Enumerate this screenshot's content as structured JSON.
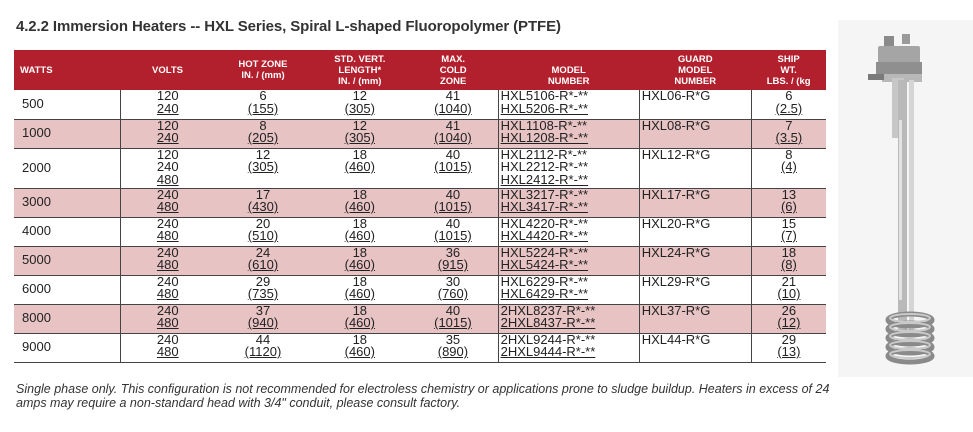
{
  "title": "4.2.2 Immersion Heaters -- HXL Series, Spiral L-shaped Fluoropolymer (PTFE)",
  "headers": {
    "watts": "WATTS",
    "volts": "VOLTS",
    "hot_zone": [
      "HOT ZONE",
      "IN. / (mm)"
    ],
    "vert_length": [
      "STD. VERT.",
      "LENGTH*",
      "IN. / (mm)"
    ],
    "cold_zone": [
      "MAX.",
      "COLD",
      "ZONE"
    ],
    "model": [
      "MODEL",
      "NUMBER"
    ],
    "guard": [
      "GUARD",
      "MODEL",
      "NUMBER"
    ],
    "ship": [
      "SHIP",
      "WT.",
      "LBS. / (kg"
    ]
  },
  "rows": [
    {
      "watts": "500",
      "volts": [
        "120",
        "240"
      ],
      "hot": [
        "6",
        "(155)"
      ],
      "vert": [
        "12",
        "(305)"
      ],
      "cold": [
        "41",
        "(1040)"
      ],
      "model": [
        "HXL5106-R*-**",
        "HXL5206-R*-**"
      ],
      "guard": "HXL06-R*G",
      "ship": [
        "6",
        "(2.5)"
      ]
    },
    {
      "watts": "1000",
      "volts": [
        "120",
        "240"
      ],
      "hot": [
        "8",
        "(205)"
      ],
      "vert": [
        "12",
        "(305)"
      ],
      "cold": [
        "41",
        "(1040)"
      ],
      "model": [
        "HXL1108-R*-**",
        "HXL1208-R*-**"
      ],
      "guard": "HXL08-R*G",
      "ship": [
        "7",
        "(3.5)"
      ]
    },
    {
      "watts": "2000",
      "volts": [
        "120",
        "240",
        "480"
      ],
      "hot": [
        "12",
        "(305)"
      ],
      "vert": [
        "18",
        "(460)"
      ],
      "cold": [
        "40",
        "(1015)"
      ],
      "model": [
        "HXL2112-R*-**",
        "HXL2212-R*-**",
        "HXL2412-R*-**"
      ],
      "guard": "HXL12-R*G",
      "ship": [
        "8",
        "(4)"
      ]
    },
    {
      "watts": "3000",
      "volts": [
        "240",
        "480"
      ],
      "hot": [
        "17",
        "(430)"
      ],
      "vert": [
        "18",
        "(460)"
      ],
      "cold": [
        "40",
        "(1015)"
      ],
      "model": [
        "HXL3217-R*-**",
        "HXL3417-R*-**"
      ],
      "guard": "HXL17-R*G",
      "ship": [
        "13",
        "(6)"
      ]
    },
    {
      "watts": "4000",
      "volts": [
        "240",
        "480"
      ],
      "hot": [
        "20",
        "(510)"
      ],
      "vert": [
        "18",
        "(460)"
      ],
      "cold": [
        "40",
        "(1015)"
      ],
      "model": [
        "HXL4220-R*-**",
        "HXL4420-R*-**"
      ],
      "guard": "HXL20-R*G",
      "ship": [
        "15",
        "(7)"
      ]
    },
    {
      "watts": "5000",
      "volts": [
        "240",
        "480"
      ],
      "hot": [
        "24",
        "(610)"
      ],
      "vert": [
        "18",
        "(460)"
      ],
      "cold": [
        "36",
        "(915)"
      ],
      "model": [
        "HXL5224-R*-**",
        "HXL5424-R*-**"
      ],
      "guard": "HXL24-R*G",
      "ship": [
        "18",
        "(8)"
      ]
    },
    {
      "watts": "6000",
      "volts": [
        "240",
        "480"
      ],
      "hot": [
        "29",
        "(735)"
      ],
      "vert": [
        "18",
        "(460)"
      ],
      "cold": [
        "30",
        "(760)"
      ],
      "model": [
        "HXL6229-R*-**",
        "HXL6429-R*-**"
      ],
      "guard": "HXL29-R*G",
      "ship": [
        "21",
        "(10)"
      ]
    },
    {
      "watts": "8000",
      "volts": [
        "240",
        "480"
      ],
      "hot": [
        "37",
        "(940)"
      ],
      "vert": [
        "18",
        "(460)"
      ],
      "cold": [
        "40",
        "(1015)"
      ],
      "model": [
        "2HXL8237-R*-**",
        "2HXL8437-R*-**"
      ],
      "guard": "HXL37-R*G",
      "ship": [
        "26",
        "(12)"
      ]
    },
    {
      "watts": "9000",
      "volts": [
        "240",
        "480"
      ],
      "hot": [
        "44",
        "(1120)"
      ],
      "vert": [
        "18",
        "(460)"
      ],
      "cold": [
        "35",
        "(890)"
      ],
      "model": [
        "2HXL9244-R*-**",
        "2HXL9444-R*-**"
      ],
      "guard": "HXL44-R*G",
      "ship": [
        "29",
        "(13)"
      ]
    }
  ],
  "footnote": "Single phase only. This configuration is not recommended for electroless chemistry or applications prone to sludge buildup. Heaters in excess of 24 amps may require a non-standard head with 3/4\" conduit, please consult factory.",
  "colors": {
    "header_bg": "#b3202d",
    "alt_row_bg": "#e8c3c4"
  }
}
